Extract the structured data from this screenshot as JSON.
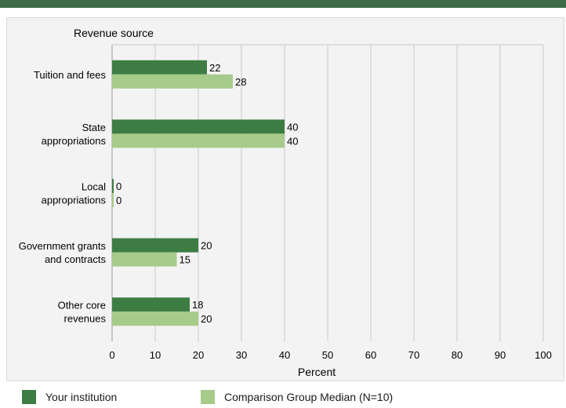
{
  "chart_data": {
    "type": "bar",
    "orientation": "horizontal",
    "title": "Revenue source",
    "xlabel": "Percent",
    "xlim": [
      0,
      100
    ],
    "xticks": [
      0,
      10,
      20,
      30,
      40,
      50,
      60,
      70,
      80,
      90,
      100
    ],
    "grid": true,
    "legend_position": "bottom",
    "categories": [
      [
        "Tuition and fees"
      ],
      [
        "State",
        "appropriations"
      ],
      [
        "Local",
        "appropriations"
      ],
      [
        "Government grants",
        "and contracts"
      ],
      [
        "Other core",
        "revenues"
      ]
    ],
    "series": [
      {
        "name": "Your institution",
        "values": [
          22,
          40,
          0,
          20,
          18
        ],
        "color": "#3d7d43"
      },
      {
        "name": "Comparison Group Median (N=10)",
        "values": [
          28,
          40,
          0,
          15,
          20
        ],
        "color": "#a6cb8a"
      }
    ]
  }
}
